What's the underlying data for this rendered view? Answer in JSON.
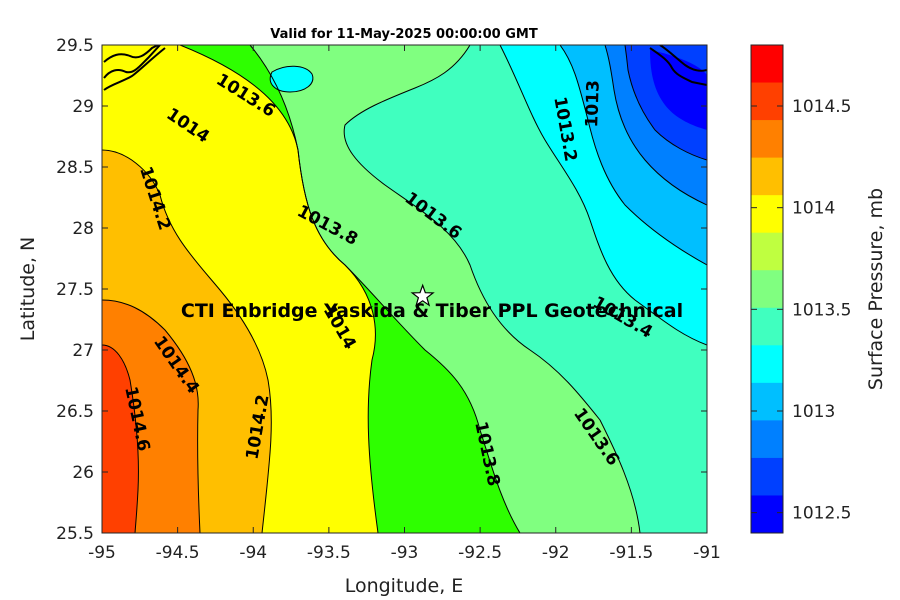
{
  "title": "Valid for 11-May-2025 00:00:00 GMT",
  "x_axis": {
    "label": "Longitude, E",
    "ticks": [
      "-95",
      "-94.5",
      "-94",
      "-93.5",
      "-93",
      "-92.5",
      "-92",
      "-91.5",
      "-91"
    ]
  },
  "y_axis": {
    "label": "Latitude, N",
    "ticks": [
      "29.5",
      "29",
      "28.5",
      "28",
      "27.5",
      "27",
      "26.5",
      "26",
      "25.5"
    ]
  },
  "colorbar": {
    "label": "Surface Pressure, mb",
    "tick_labels": [
      "1014.5",
      "1014",
      "1013.5",
      "1013",
      "1012.5"
    ],
    "colors": [
      "#ff0000",
      "#ff4000",
      "#ff8000",
      "#ffbf00",
      "#ffff00",
      "#bfff40",
      "#80ff80",
      "#40ffbf",
      "#00ffff",
      "#00bfff",
      "#0080ff",
      "#0040ff",
      "#0000ff"
    ]
  },
  "contour_labels": [
    "1013.6",
    "1014",
    "1014.2",
    "1013.8",
    "1013.6",
    "1013.2",
    "1013",
    "1014",
    "1013.4",
    "1014.4",
    "1014.6",
    "1014.2",
    "1013.8",
    "1013.6"
  ],
  "site": {
    "label": "CTI Enbridge  Yaskida & Tiber PPL Geotechnical",
    "marker": "star-icon",
    "lon": -92.88,
    "lat": 27.44
  },
  "chart_data": {
    "type": "heatmap",
    "title": "Valid for 11-May-2025 00:00:00 GMT",
    "xlabel": "Longitude, E",
    "ylabel": "Latitude, N",
    "xlim": [
      -95,
      -91
    ],
    "ylim": [
      25.5,
      29.5
    ],
    "colorbar_range_mb": [
      1012.4,
      1014.8
    ],
    "contour_interval_mb": 0.2,
    "contour_levels_labeled": [
      1013,
      1013.2,
      1013.4,
      1013.6,
      1013.8,
      1014,
      1014.2,
      1014.4,
      1014.6
    ]
  }
}
